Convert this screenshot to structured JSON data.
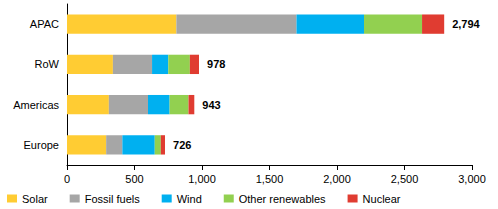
{
  "chart_data": {
    "type": "bar",
    "orientation": "horizontal",
    "stacked": true,
    "grid": false,
    "legend": "bottom",
    "categories": [
      "APAC",
      "RoW",
      "Americas",
      "Europe"
    ],
    "series": [
      {
        "name": "Solar",
        "color": "#FFCC33",
        "values": [
          810,
          340,
          310,
          290
        ]
      },
      {
        "name": "Fossil fuels",
        "color": "#A6A6A6",
        "values": [
          890,
          290,
          290,
          120
        ]
      },
      {
        "name": "Wind",
        "color": "#00B0F0",
        "values": [
          500,
          120,
          160,
          240
        ]
      },
      {
        "name": "Other renewables",
        "color": "#92D050",
        "values": [
          430,
          160,
          140,
          45
        ]
      },
      {
        "name": "Nuclear",
        "color": "#E03C31",
        "values": [
          164,
          68,
          43,
          31
        ]
      }
    ],
    "totals": [
      2794,
      978,
      943,
      726
    ],
    "total_labels": [
      "2,794",
      "978",
      "943",
      "726"
    ],
    "xlim": [
      0,
      3000
    ],
    "xticks": [
      0,
      500,
      {
        "value": 1000,
        "label": "1,000"
      },
      {
        "value": 1500,
        "label": "1,500"
      },
      {
        "value": 2000,
        "label": "2,000"
      },
      {
        "value": 2500,
        "label": "2,500"
      },
      {
        "value": 3000,
        "label": "3,000"
      }
    ]
  }
}
